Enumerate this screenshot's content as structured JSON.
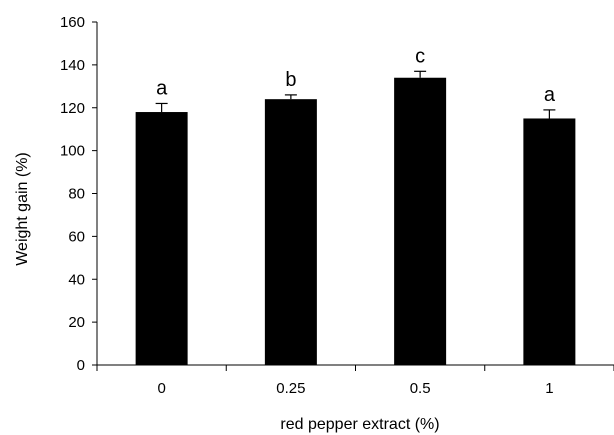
{
  "chart_data": {
    "type": "bar",
    "categories": [
      "0",
      "0.25",
      "0.5",
      "1"
    ],
    "values": [
      118,
      124,
      134,
      115
    ],
    "error": [
      4,
      2,
      3,
      4
    ],
    "significance_labels": [
      "a",
      "b",
      "c",
      "a"
    ],
    "title": "",
    "xlabel": "red pepper extract (%)",
    "ylabel": "Weight gain (%)",
    "ylim": [
      0,
      160
    ],
    "yticks": [
      0,
      20,
      40,
      60,
      80,
      100,
      120,
      140,
      160
    ],
    "grid": false,
    "bar_color": "#000000"
  }
}
